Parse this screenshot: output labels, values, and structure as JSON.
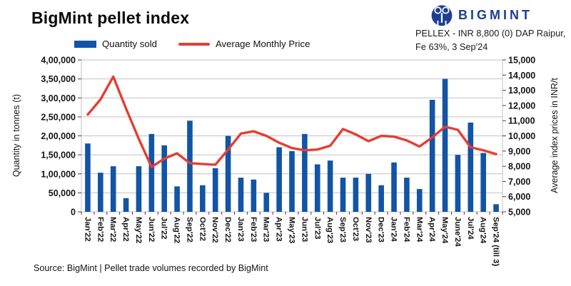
{
  "page": {
    "title": "BigMint pellet index"
  },
  "brand": {
    "name": "BIGMINT",
    "logo_color": "#1c3f93"
  },
  "index_info": {
    "line1": "PELLEX - INR 8,800 (0) DAP Raipur,",
    "line2": "Fe 63%, 3 Sep'24"
  },
  "legend": {
    "bar_label": "Quantity sold",
    "line_label": "Average Monthly Price"
  },
  "source": "Source: BigMint | Pellet trade volumes recorded by BigMint",
  "chart_data": {
    "type": "bar+line",
    "title": "BigMint pellet index",
    "grid": true,
    "legend_position": "top",
    "grid_color": "#c2c2c2",
    "axis_color": "#3f3f3f",
    "text_color": "#141414",
    "categories": [
      "Jan'22",
      "Feb'22",
      "Mar'22",
      "Apr'22",
      "May'22",
      "Jun'22",
      "Jul'22",
      "Aug'22",
      "Sep'22",
      "Oct'22",
      "Nov'22",
      "Dec'22",
      "Jan'23",
      "Feb'23",
      "Mar'23",
      "Apr'23",
      "May'23",
      "Jun'23",
      "Jul'23",
      "Aug'23",
      "Sep'23",
      "Oct'23",
      "Nov'23",
      "Dec'23",
      "Jan'24",
      "Feb'24",
      "Mar'24",
      "Apr'24",
      "May'24",
      "June'24",
      "Jul'24",
      "Aug'24",
      "Sep'24 (till 3)"
    ],
    "series": [
      {
        "name": "Quantity sold",
        "type": "bar",
        "axis": "left",
        "color": "#1254a5",
        "values": [
          180000,
          103000,
          120000,
          36000,
          120000,
          205000,
          175000,
          67000,
          240000,
          70000,
          115000,
          200000,
          90000,
          85000,
          50000,
          170000,
          160000,
          205000,
          125000,
          135000,
          90000,
          90000,
          100000,
          70000,
          130000,
          90000,
          60000,
          295000,
          350000,
          150000,
          235000,
          155000,
          20000
        ]
      },
      {
        "name": "Average Monthly Price",
        "type": "line",
        "axis": "right",
        "color": "#e63e32",
        "values": [
          11400,
          12400,
          13900,
          11800,
          9800,
          7950,
          8500,
          8850,
          8200,
          8150,
          8100,
          9100,
          10150,
          10300,
          10000,
          9550,
          9200,
          9050,
          9100,
          9350,
          10450,
          10100,
          9650,
          10000,
          9950,
          9700,
          9300,
          9900,
          10600,
          10400,
          9250,
          9050,
          8800
        ]
      }
    ],
    "left_axis": {
      "title": "Quantity in tonnes (t)",
      "min": 0,
      "max": 400000,
      "tick_labels": [
        "4,00,000",
        "3,50,000",
        "3,00,000",
        "2,50,000",
        "2,00,000",
        "1,50,000",
        "1,00,000",
        "50,000",
        "0"
      ]
    },
    "right_axis": {
      "title": "Average index prices in INR/t",
      "min": 5000,
      "max": 15000,
      "tick_labels": [
        "15,000",
        "14,000",
        "13,000",
        "12,000",
        "11,000",
        "10,000",
        "9,000",
        "8,000",
        "7,000",
        "6,000",
        "5,000"
      ]
    }
  }
}
